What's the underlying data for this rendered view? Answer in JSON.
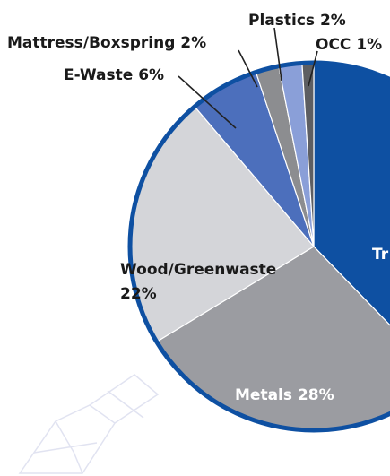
{
  "chart_data": {
    "type": "pie",
    "title": "",
    "slices": [
      {
        "label": "Trash",
        "value": 37,
        "value_label": "",
        "color": "#0e50a2"
      },
      {
        "label": "Metals",
        "value": 28,
        "value_label": "28%",
        "color": "#9b9ca1"
      },
      {
        "label": "Wood/Greenwaste",
        "value": 22,
        "value_label": "22%",
        "color": "#d4d5d9"
      },
      {
        "label": "E-Waste",
        "value": 6,
        "value_label": "6%",
        "color": "#4c6fbc"
      },
      {
        "label": "Mattress/Boxspring",
        "value": 2,
        "value_label": "2%",
        "color": "#8c8d90"
      },
      {
        "label": "Plastics",
        "value": 2,
        "value_label": "2%",
        "color": "#8a9fd8"
      },
      {
        "label": "OCC",
        "value": 1,
        "value_label": "1%",
        "color": "#5d5e62"
      }
    ],
    "label_texts": {
      "trash": "Tr",
      "metals": "Metals 28%",
      "wood_line1": "Wood/Greenwaste",
      "wood_line2": "22%",
      "ewaste": "E-Waste 6%",
      "mattress": "Mattress/Boxspring 2%",
      "plastics": "Plastics 2%",
      "occ": "OCC 1%"
    },
    "outline_color": "#0e50a2",
    "legend": "none",
    "grid": false
  }
}
